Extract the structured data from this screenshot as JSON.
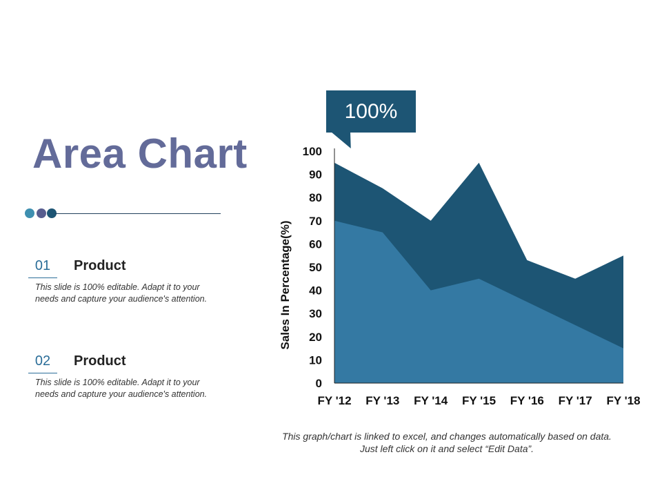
{
  "slide": {
    "title": "Area Chart",
    "dot_colors": [
      "#3e8fb0",
      "#575d8f",
      "#1d5574"
    ],
    "items": [
      {
        "number": "01",
        "label": "Product",
        "description": "This slide is 100% editable. Adapt it to your needs and capture your audience's attention."
      },
      {
        "number": "02",
        "label": "Product",
        "description": "This slide is 100% editable. Adapt it to your needs and capture your audience's attention."
      }
    ],
    "callout": "100%",
    "footnote": "This graph/chart is linked to excel, and changes automatically based on data. Just left click on it and select “Edit Data”."
  },
  "chart_data": {
    "type": "area",
    "stacked": false,
    "categories": [
      "FY '12",
      "FY '13",
      "FY '14",
      "FY '15",
      "FY '16",
      "FY '17",
      "FY '18"
    ],
    "series": [
      {
        "color": "#1d5574",
        "values": [
          95,
          84,
          70,
          95,
          53,
          45,
          55
        ]
      },
      {
        "color": "#3479a3",
        "values": [
          70,
          65,
          40,
          45,
          35,
          25,
          15
        ]
      }
    ],
    "ylabel": "Sales In Percentage(%)",
    "xlabel": "",
    "ylim": [
      0,
      100
    ],
    "yticks": [
      0,
      10,
      20,
      30,
      40,
      50,
      60,
      70,
      80,
      90,
      100
    ],
    "grid": false,
    "legend": "none"
  }
}
